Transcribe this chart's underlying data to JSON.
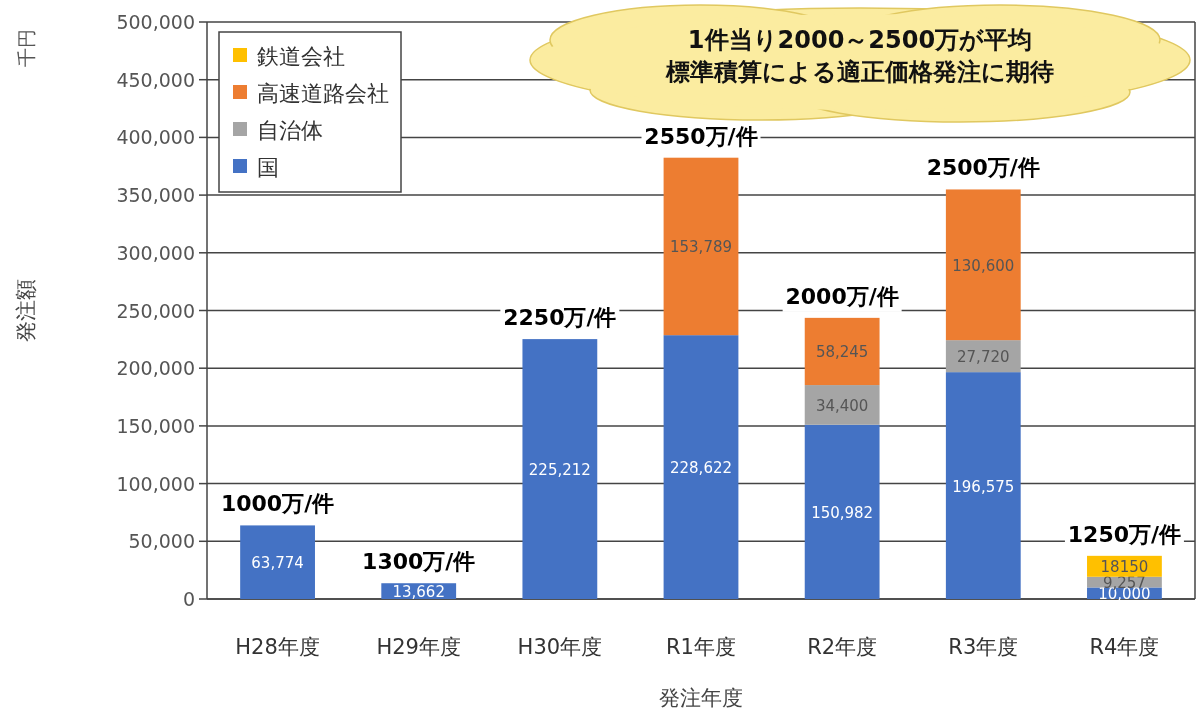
{
  "chart_data": {
    "type": "bar",
    "stacked": true,
    "xlabel": "発注年度",
    "ylabel": "発注額",
    "categories": [
      "H28年度",
      "H29年度",
      "H30年度",
      "R1年度",
      "R2年度",
      "R3年度",
      "R4年度"
    ],
    "series": [
      {
        "name": "国",
        "color": "#4472c4",
        "values": [
          63774,
          13662,
          225212,
          228622,
          150982,
          196575,
          10000
        ],
        "value_labels": [
          "63,774",
          "13,662",
          "225,212",
          "228,622",
          "150,982",
          "196,575",
          "10,000"
        ]
      },
      {
        "name": "自治体",
        "color": "#a5a5a5",
        "values": [
          null,
          null,
          null,
          null,
          34400,
          27720,
          9257
        ],
        "value_labels": [
          null,
          null,
          null,
          null,
          "34,400",
          "27,720",
          "9,257"
        ]
      },
      {
        "name": "高速道路会社",
        "color": "#ed7d31",
        "values": [
          null,
          null,
          null,
          153789,
          58245,
          130600,
          null
        ],
        "value_labels": [
          null,
          null,
          null,
          "153,789",
          "58,245",
          "130,600",
          null
        ]
      },
      {
        "name": "鉄道会社",
        "color": "#ffc000",
        "values": [
          null,
          null,
          null,
          null,
          null,
          null,
          18150
        ],
        "value_labels": [
          null,
          null,
          null,
          null,
          null,
          null,
          "18150"
        ]
      }
    ],
    "ylim": [
      0,
      500000
    ],
    "yticks": [
      {
        "value": 0,
        "label": "0"
      },
      {
        "value": 50000,
        "label": "50,000"
      },
      {
        "value": 100000,
        "label": "100,000"
      },
      {
        "value": 150000,
        "label": "150,000"
      },
      {
        "value": 200000,
        "label": "200,000"
      },
      {
        "value": 250000,
        "label": "250,000"
      },
      {
        "value": 300000,
        "label": "300,000"
      },
      {
        "value": 350000,
        "label": "350,000"
      },
      {
        "value": 400000,
        "label": "400,000"
      },
      {
        "value": 450000,
        "label": "450,000"
      },
      {
        "value": 500000,
        "label": "500,000"
      }
    ],
    "grid": "y",
    "legend": "top left",
    "annotations": [
      "千円",
      "1件当り2000～2500万が平均",
      "標準積算による適正価格発注に期待",
      {
        "text": "1000万/件",
        "x": "H28年度",
        "y": 63774
      },
      {
        "text": "1300万/件",
        "x": "H29年度",
        "y": 13662
      },
      {
        "text": "2250万/件",
        "x": "H30年度",
        "y": 225212
      },
      {
        "text": "2550万/件",
        "x": "R1年度",
        "y": 382411
      },
      {
        "text": "2000万/件",
        "x": "R2年度",
        "y": 243627
      },
      {
        "text": "2500万/件",
        "x": "R3年度",
        "y": 354895
      },
      {
        "text": "1250万/件",
        "x": "R4年度",
        "y": 37407
      }
    ]
  }
}
